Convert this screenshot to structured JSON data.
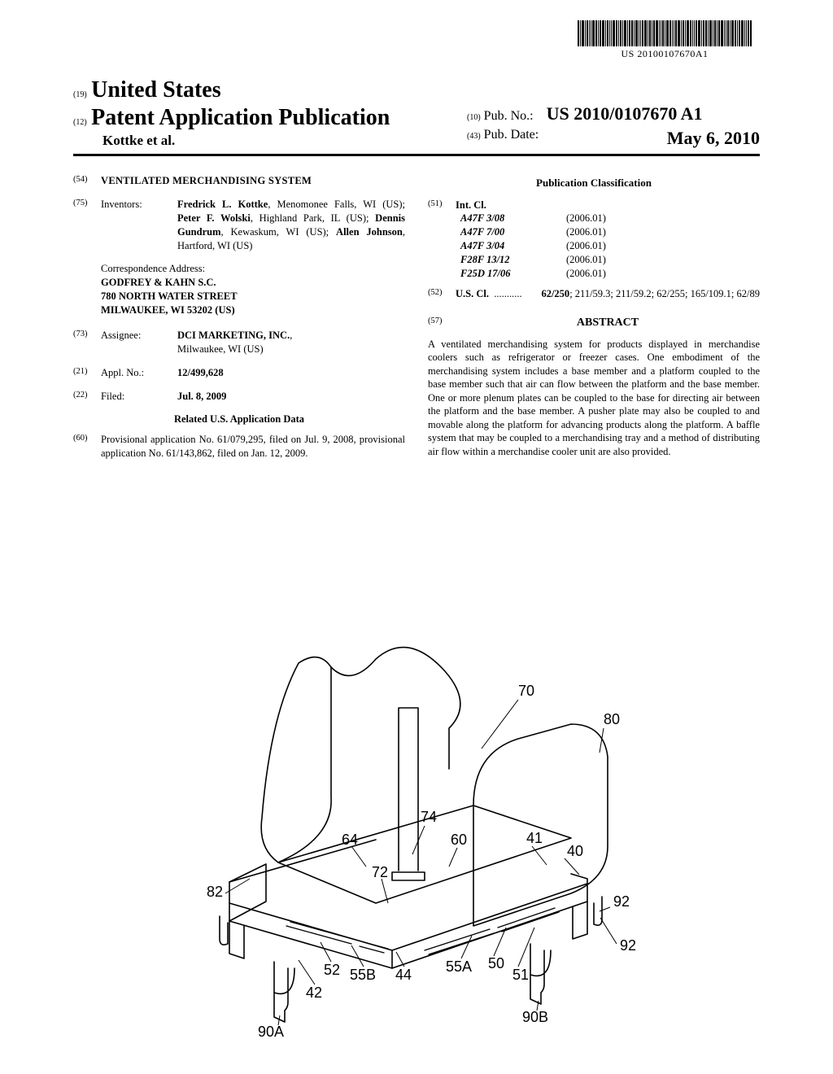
{
  "barcode_text": "US 20100107670A1",
  "header": {
    "country_num": "(19)",
    "country": "United States",
    "doc_num": "(12)",
    "doc_type": "Patent Application Publication",
    "authors": "Kottke et al.",
    "pubno_num": "(10)",
    "pubno_label": "Pub. No.:",
    "pubno": "US 2010/0107670 A1",
    "pubdate_num": "(43)",
    "pubdate_label": "Pub. Date:",
    "pubdate": "May 6, 2010"
  },
  "left_col": {
    "title_num": "(54)",
    "title": "VENTILATED MERCHANDISING SYSTEM",
    "inventors_num": "(75)",
    "inventors_label": "Inventors:",
    "inventors_html": "<span class='bold'>Fredrick L. Kottke</span>, Menomonee Falls, WI (US); <span class='bold'>Peter F. Wolski</span>, Highland Park, IL (US); <span class='bold'>Dennis Gundrum</span>, Kewaskum, WI (US); <span class='bold'>Allen Johnson</span>, Hartford, WI (US)",
    "corr_label": "Correspondence Address:",
    "corr_line1": "GODFREY & KAHN S.C.",
    "corr_line2": "780 NORTH WATER STREET",
    "corr_line3": "MILWAUKEE, WI 53202 (US)",
    "assignee_num": "(73)",
    "assignee_label": "Assignee:",
    "assignee_name": "DCI MARKETING, INC.",
    "assignee_loc": "Milwaukee, WI (US)",
    "applno_num": "(21)",
    "applno_label": "Appl. No.:",
    "applno": "12/499,628",
    "filed_num": "(22)",
    "filed_label": "Filed:",
    "filed": "Jul. 8, 2009",
    "related_title": "Related U.S. Application Data",
    "prov_num": "(60)",
    "prov_text": "Provisional application No. 61/079,295, filed on Jul. 9, 2008, provisional application No. 61/143,862, filed on Jan. 12, 2009."
  },
  "right_col": {
    "pubclass_title": "Publication Classification",
    "intcl_num": "(51)",
    "intcl_label": "Int. Cl.",
    "intcl": [
      {
        "code": "A47F 3/08",
        "year": "(2006.01)"
      },
      {
        "code": "A47F 7/00",
        "year": "(2006.01)"
      },
      {
        "code": "A47F 3/04",
        "year": "(2006.01)"
      },
      {
        "code": "F28F 13/12",
        "year": "(2006.01)"
      },
      {
        "code": "F25D 17/06",
        "year": "(2006.01)"
      }
    ],
    "uscl_num": "(52)",
    "uscl_label": "U.S. Cl.",
    "uscl_dots": "...........",
    "uscl_main": "62/250",
    "uscl_rest": "; 211/59.3; 211/59.2; 62/255; 165/109.1; 62/89",
    "abstract_num": "(57)",
    "abstract_title": "ABSTRACT",
    "abstract_text": "A ventilated merchandising system for products displayed in merchandise coolers such as refrigerator or freezer cases. One embodiment of the merchandising system includes a base member and a platform coupled to the base member such that air can flow between the platform and the base member. One or more plenum plates can be coupled to the base for directing air between the platform and the base member. A pusher plate may also be coupled to and movable along the platform for advancing products along the platform. A baffle system that may be coupled to a merchandising tray and a method of distributing air flow within a merchandise cooler unit are also provided."
  },
  "figure": {
    "labels": [
      "70",
      "80",
      "74",
      "64",
      "60",
      "41",
      "40",
      "72",
      "82",
      "92",
      "52",
      "55B",
      "44",
      "55A",
      "50",
      "42",
      "51",
      "92",
      "90A",
      "90B"
    ]
  }
}
